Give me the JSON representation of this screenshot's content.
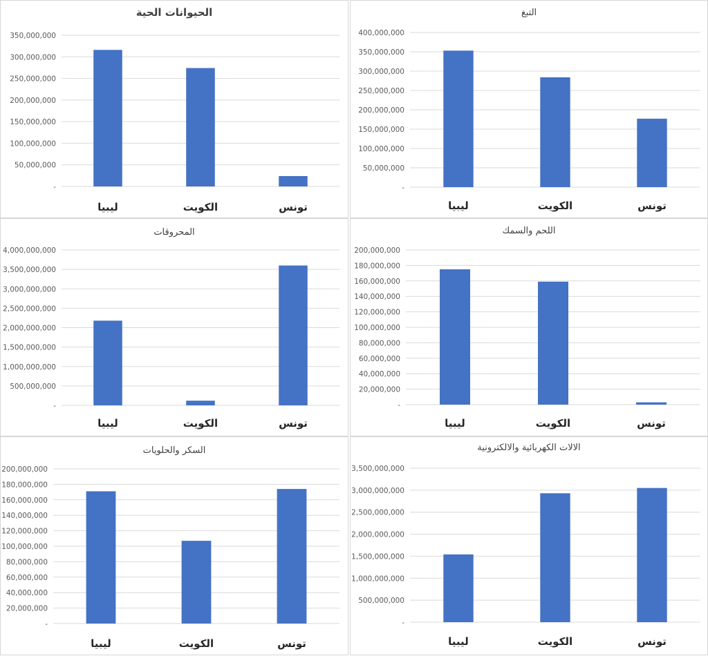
{
  "colors": {
    "bar": "#4472c4",
    "grid": "#d9d9d9",
    "tick_text": "#595959",
    "category_text": "#262626",
    "title_text": "#404040"
  },
  "chart_data": [
    {
      "type": "bar",
      "title": "الحيوانات الحية",
      "categories": [
        "ليبيا",
        "الكويت",
        "تونس"
      ],
      "values": [
        316000000,
        274000000,
        24000000
      ],
      "ylim": [
        0,
        350000000
      ],
      "yticks": [
        "-",
        "50,000,000",
        "100,000,000",
        "150,000,000",
        "200,000,000",
        "250,000,000",
        "300,000,000",
        "350,000,000"
      ],
      "grid": true
    },
    {
      "type": "bar",
      "title": "التبغ",
      "categories": [
        "ليبيا",
        "الكويت",
        "تونس"
      ],
      "values": [
        353000000,
        284000000,
        177000000
      ],
      "ylim": [
        0,
        400000000
      ],
      "yticks": [
        "-",
        "50,000,000",
        "100,000,000",
        "150,000,000",
        "200,000,000",
        "250,000,000",
        "300,000,000",
        "350,000,000",
        "400,000,000"
      ],
      "grid": true
    },
    {
      "type": "bar",
      "title": "المحروقات",
      "categories": [
        "ليبيا",
        "الكويت",
        "تونس"
      ],
      "values": [
        2180000000,
        120000000,
        3600000000
      ],
      "ylim": [
        0,
        4000000000
      ],
      "yticks": [
        "-",
        "500,000,000",
        "1,000,000,000",
        "1,500,000,000",
        "2,000,000,000",
        "2,500,000,000",
        "3,000,000,000",
        "3,500,000,000",
        "4,000,000,000"
      ],
      "grid": true
    },
    {
      "type": "bar",
      "title": "اللحم والسمك",
      "categories": [
        "ليبيا",
        "الكويت",
        "تونس"
      ],
      "values": [
        175000000,
        159000000,
        3000000
      ],
      "ylim": [
        0,
        200000000
      ],
      "yticks": [
        "-",
        "20,000,000",
        "40,000,000",
        "60,000,000",
        "80,000,000",
        "100,000,000",
        "120,000,000",
        "140,000,000",
        "160,000,000",
        "180,000,000",
        "200,000,000"
      ],
      "grid": true
    },
    {
      "type": "bar",
      "title": "السكر والحلويات",
      "categories": [
        "ليبيا",
        "الكويت",
        "تونس"
      ],
      "values": [
        171000000,
        107000000,
        174000000
      ],
      "ylim": [
        0,
        200000000
      ],
      "yticks": [
        "-",
        "20,000,000",
        "40,000,000",
        "60,000,000",
        "80,000,000",
        "100,000,000",
        "120,000,000",
        "140,000,000",
        "160,000,000",
        "180,000,000",
        "200,000,000"
      ],
      "grid": true
    },
    {
      "type": "bar",
      "title": "الالات الكهربائية والالكترونية",
      "categories": [
        "ليبيا",
        "الكويت",
        "تونس"
      ],
      "values": [
        1540000000,
        2930000000,
        3050000000
      ],
      "ylim": [
        0,
        3500000000
      ],
      "yticks": [
        "-",
        "500,000,000",
        "1,000,000,000",
        "1,500,000,000",
        "2,000,000,000",
        "2,500,000,000",
        "3,000,000,000",
        "3,500,000,000"
      ],
      "grid": true
    }
  ]
}
